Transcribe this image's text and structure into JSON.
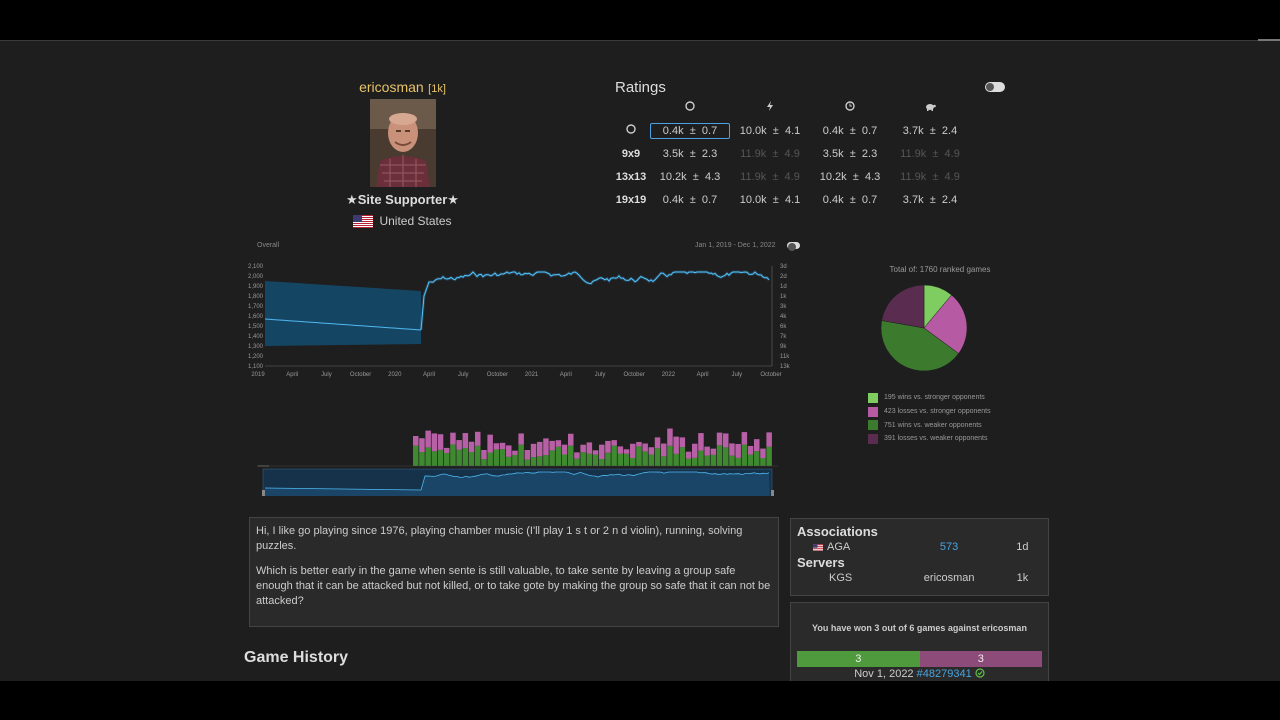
{
  "profile": {
    "username": "ericosman",
    "rank": "[1k]",
    "supporter": "Site Supporter",
    "country": "United States"
  },
  "ratings": {
    "title": "Ratings",
    "rows": [
      {
        "label": "",
        "icon": "circle-icon",
        "cells": [
          {
            "r": "0.4k",
            "pm": "±",
            "d": "0.7",
            "dim": false,
            "selected": true
          },
          {
            "r": "10.0k",
            "pm": "±",
            "d": "4.1",
            "dim": false
          },
          {
            "r": "0.4k",
            "pm": "±",
            "d": "0.7",
            "dim": false
          },
          {
            "r": "3.7k",
            "pm": "±",
            "d": "2.4",
            "dim": false
          }
        ]
      },
      {
        "label": "9x9",
        "cells": [
          {
            "r": "3.5k",
            "pm": "±",
            "d": "2.3",
            "dim": false
          },
          {
            "r": "11.9k",
            "pm": "±",
            "d": "4.9",
            "dim": true
          },
          {
            "r": "3.5k",
            "pm": "±",
            "d": "2.3",
            "dim": false
          },
          {
            "r": "11.9k",
            "pm": "±",
            "d": "4.9",
            "dim": true
          }
        ]
      },
      {
        "label": "13x13",
        "cells": [
          {
            "r": "10.2k",
            "pm": "±",
            "d": "4.3",
            "dim": false
          },
          {
            "r": "11.9k",
            "pm": "±",
            "d": "4.9",
            "dim": true
          },
          {
            "r": "10.2k",
            "pm": "±",
            "d": "4.3",
            "dim": false
          },
          {
            "r": "11.9k",
            "pm": "±",
            "d": "4.9",
            "dim": true
          }
        ]
      },
      {
        "label": "19x19",
        "cells": [
          {
            "r": "0.4k",
            "pm": "±",
            "d": "0.7",
            "dim": false
          },
          {
            "r": "10.0k",
            "pm": "±",
            "d": "4.1",
            "dim": false
          },
          {
            "r": "0.4k",
            "pm": "±",
            "d": "0.7",
            "dim": false
          },
          {
            "r": "3.7k",
            "pm": "±",
            "d": "2.4",
            "dim": false
          }
        ]
      }
    ]
  },
  "chart": {
    "overall_label": "Overall",
    "date_range": "Jan 1, 2019 - Dec 1, 2022"
  },
  "chart_data": [
    {
      "type": "line",
      "y_ticks_left": [
        "2,100",
        "2,000",
        "1,900",
        "1,800",
        "1,700",
        "1,600",
        "1,500",
        "1,400",
        "1,300",
        "1,200",
        "1,100"
      ],
      "y_ticks_right": [
        "3d",
        "2d",
        "1d",
        "1k",
        "3k",
        "4k",
        "6k",
        "7k",
        "9k",
        "11k",
        "13k"
      ],
      "x_ticks": [
        "2019",
        "April",
        "July",
        "October",
        "2020",
        "April",
        "July",
        "October",
        "2021",
        "April",
        "July",
        "October",
        "2022",
        "April",
        "July",
        "October"
      ],
      "ylim": [
        1100,
        2100
      ]
    },
    {
      "type": "pie",
      "title": "Total of: 1760 ranked games",
      "slices": [
        {
          "label": "195 wins vs. stronger opponents",
          "value": 195,
          "color": "#7fcc60"
        },
        {
          "label": "423 losses vs. stronger opponents",
          "value": 423,
          "color": "#b65aa4"
        },
        {
          "label": "751 wins vs. weaker opponents",
          "value": 751,
          "color": "#3c7a2e"
        },
        {
          "label": "391 losses vs. weaker opponents",
          "value": 391,
          "color": "#5a2c50"
        }
      ]
    }
  ],
  "bio": {
    "p1": "Hi, I like go playing since 1976, playing chamber music (I'll play 1 s t or 2 n d violin), running, solving puzzles.",
    "p2": "Which is better early in the game when sente is still valuable, to take sente by leaving a group safe enough that it can be attacked but not killed, or to take gote by making the group so safe that it can not be attacked?"
  },
  "associations": {
    "title": "Associations",
    "items": [
      {
        "name": "AGA",
        "id": "573",
        "rank": "1d"
      }
    ],
    "servers_title": "Servers",
    "servers": [
      {
        "name": "KGS",
        "user": "ericosman",
        "rank": "1k"
      }
    ]
  },
  "versus": {
    "message": "You have won 3 out of 6 games against ericosman",
    "wins": "3",
    "losses": "3",
    "win_fraction": 0.5,
    "last_date": "Nov 1, 2022",
    "last_game": "#48279341"
  },
  "game_history": {
    "title": "Game History"
  }
}
